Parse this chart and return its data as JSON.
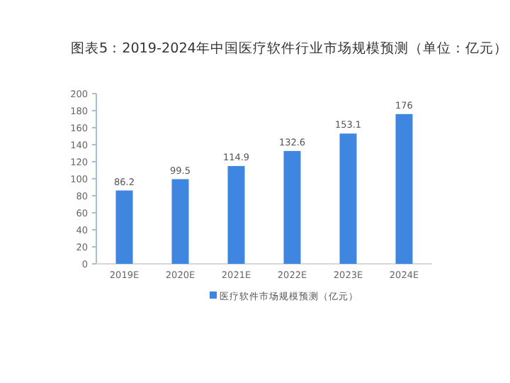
{
  "chart_data": {
    "type": "bar",
    "title": "图表5：2019-2024年中国医疗软件行业市场规模预测（单位：亿元）",
    "categories": [
      "2019E",
      "2020E",
      "2021E",
      "2022E",
      "2023E",
      "2024E"
    ],
    "series": [
      {
        "name": "医疗软件市场规模预测（亿元）",
        "color": "#3f86e0",
        "values": [
          86.2,
          99.5,
          114.9,
          132.6,
          153.1,
          176
        ]
      }
    ],
    "ylim": [
      0,
      200
    ],
    "yticks": [
      0,
      20,
      40,
      60,
      80,
      100,
      120,
      140,
      160,
      180,
      200
    ],
    "data_labels": true,
    "legend": "bottom",
    "grid": false
  }
}
